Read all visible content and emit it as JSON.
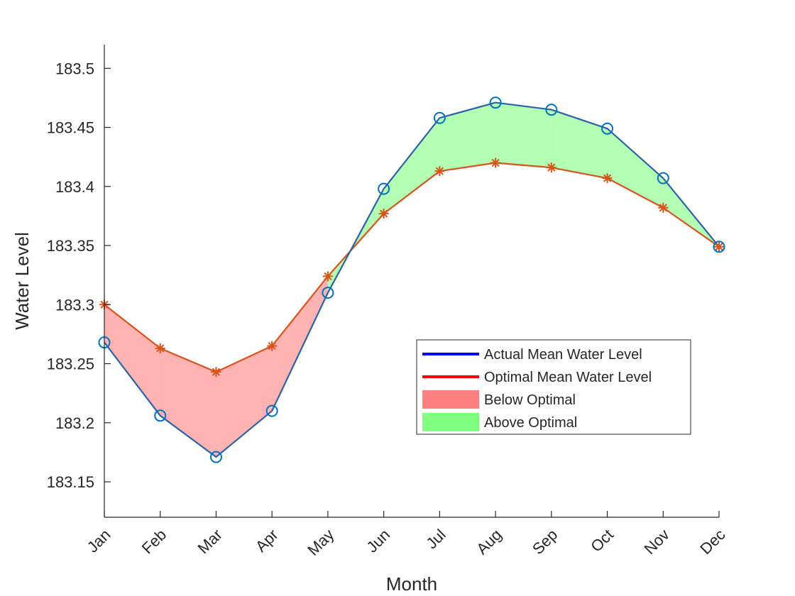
{
  "chart_data": {
    "type": "line",
    "title": "",
    "xlabel": "Month",
    "ylabel": "Water Level",
    "categories": [
      "Jan",
      "Feb",
      "Mar",
      "Apr",
      "May",
      "Jun",
      "Jul",
      "Aug",
      "Sep",
      "Oct",
      "Nov",
      "Dec"
    ],
    "ylim": [
      183.12,
      183.52
    ],
    "yticks": [
      183.15,
      183.2,
      183.25,
      183.3,
      183.35,
      183.4,
      183.45,
      183.5
    ],
    "ytick_labels": [
      "183.15",
      "183.2",
      "183.25",
      "183.3",
      "183.35",
      "183.4",
      "183.45",
      "183.5"
    ],
    "series": [
      {
        "name": "Actual Mean Water Level",
        "values": [
          183.268,
          183.206,
          183.171,
          183.21,
          183.31,
          183.398,
          183.458,
          183.471,
          183.465,
          183.449,
          183.407,
          183.349
        ],
        "marker": "circle",
        "line_color": "#2E62A6",
        "marker_color": "#0072BD",
        "legend_color": "#0000FF"
      },
      {
        "name": "Optimal Mean Water Level",
        "values": [
          183.3,
          183.263,
          183.243,
          183.265,
          183.324,
          183.377,
          183.413,
          183.42,
          183.416,
          183.407,
          183.382,
          183.349
        ],
        "marker": "asterisk",
        "line_color": "#D9531E",
        "marker_color": "#D95319",
        "legend_color": "#FF0000"
      }
    ],
    "fills": [
      {
        "name": "Below Optimal",
        "color": "#FF8080",
        "opacity": 0.6
      },
      {
        "name": "Above Optimal",
        "color": "#80FF80",
        "opacity": 0.6
      }
    ],
    "legend": {
      "location": "lower-right-inside",
      "entries": [
        "Actual Mean Water Level",
        "Optimal Mean Water Level",
        "Below Optimal",
        "Above Optimal"
      ]
    },
    "grid": false
  }
}
